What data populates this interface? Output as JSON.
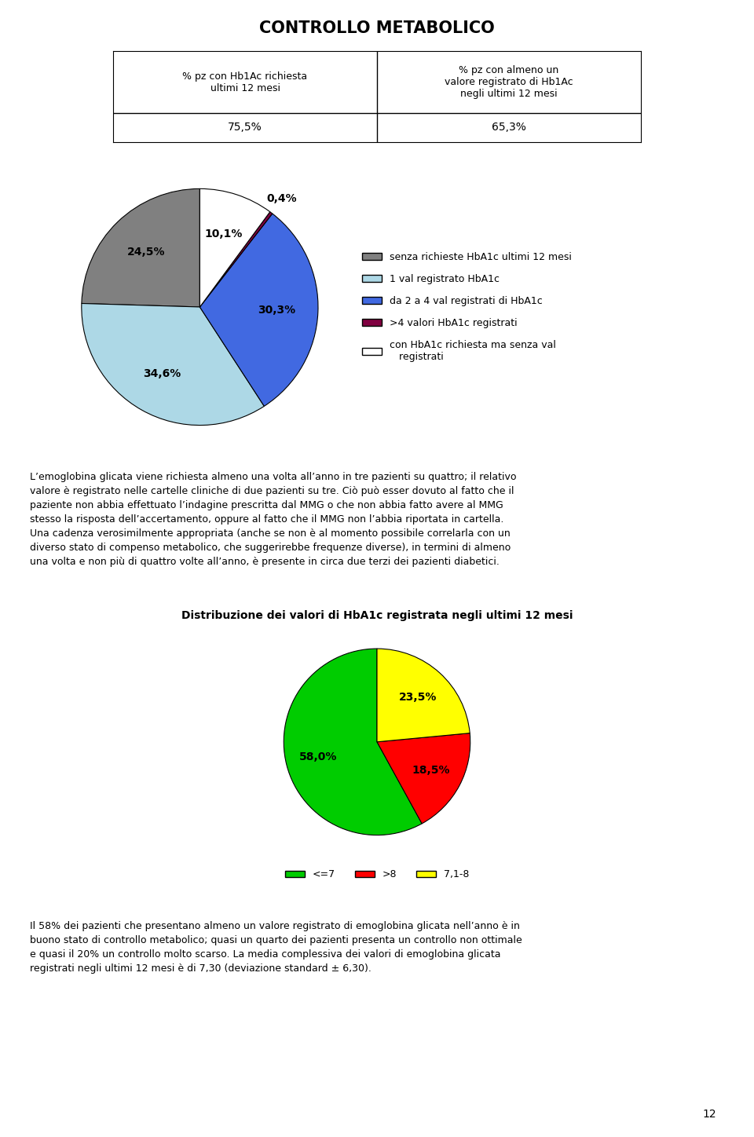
{
  "title": "CONTROLLO METABOLICO",
  "table": {
    "headers": [
      "% pz con Hb1Ac richiesta\nultimi 12 mesi",
      "% pz con almeno un\nvalore registrato di Hb1Ac\nnegli ultimi 12 mesi"
    ],
    "values": [
      75.5,
      65.3
    ],
    "value_labels": [
      "75,5%",
      "65,3%"
    ]
  },
  "annotations": [
    "L’emoglobina glicata viene richiesta almeno una volta all’anno in tre pazienti su quattro; il relativo\nvalore è registrato nelle cartelle cliniche di due pazienti su tre. Ciò può esser dovuto al fatto che il\npaziente non abbia effettuato l’indagine prescritta dal MMG o che non abbia fatto avere al MMG\nstesso la risposta dell’accertamento, oppure al fatto che il MMG non l’abbia riportata in cartella.\nUna cadenza verosimilmente appropriata (anche se non è al momento possibile correlarla con un\ndiverso stato di compenso metabolico, che suggerirebbe frequenze diverse), in termini di almeno\nuna volta e non più di quattro volte all’anno, è presente in circa due terzi dei pazienti diabetici.",
    "Il 58% dei pazienti che presentano almeno un valore registrato di emoglobina glicata nell’anno è in\nbuono stato di controllo metabolico; quasi un quarto dei pazienti presenta un controllo non ottimale\ne quasi il 20% un controllo molto scarso. La media complessiva dei valori di emoglobina glicata\nregistrati negli ultimi 12 mesi è di 7,30 (deviazione standard ± 6,30)."
  ],
  "page_number": "12",
  "chart_data": [
    {
      "type": "pie",
      "categories": [
        "senza richieste HbA1c ultimi 12 mesi",
        "1 val registrato HbA1c",
        "da 2 a 4 val registrati di HbA1c",
        ">4 valori HbA1c registrati",
        "con HbA1c richiesta ma senza val\n   registrati"
      ],
      "values": [
        24.5,
        34.6,
        30.3,
        0.4,
        10.1
      ],
      "value_labels": [
        "24,5%",
        "34,6%",
        "30,3%",
        "0,4%",
        "10,1%"
      ],
      "colors": [
        "#808080",
        "#add8e6",
        "#4169e1",
        "#800040",
        "#ffffff"
      ],
      "legend": "center left"
    },
    {
      "type": "pie",
      "title": "Distribuzione dei valori di HbA1c registrata negli ultimi 12 mesi",
      "categories": [
        "<=7",
        ">8",
        "7,1-8"
      ],
      "values": [
        58.0,
        18.5,
        23.5
      ],
      "value_labels": [
        "58,0%",
        "18,5%",
        "23,5%"
      ],
      "colors": [
        "#00cc00",
        "#ff0000",
        "#ffff00"
      ],
      "legend": "upper center"
    }
  ]
}
